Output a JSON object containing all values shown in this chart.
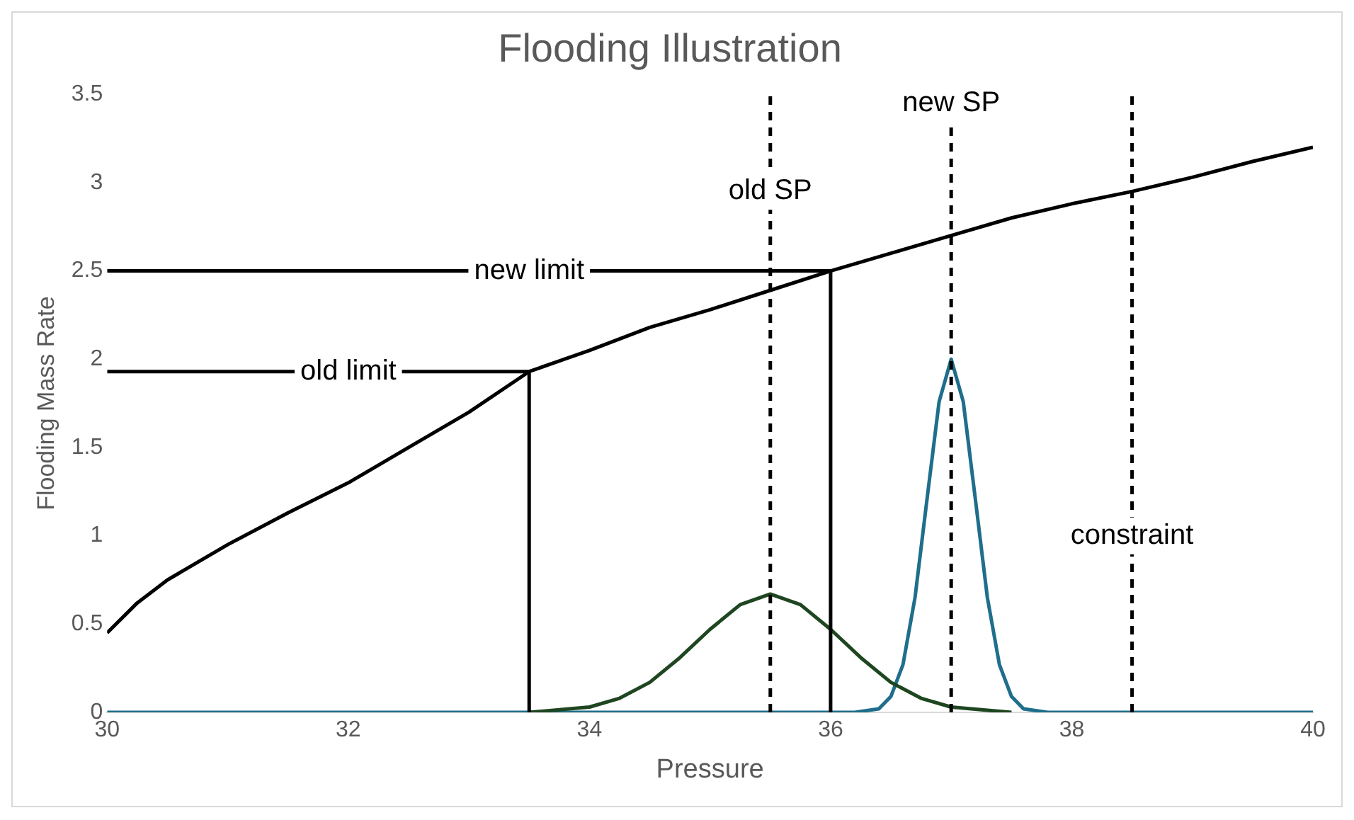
{
  "chart_data": {
    "type": "line",
    "title": "Flooding Illustration",
    "xlabel": "Pressure",
    "ylabel": "Flooding Mass Rate",
    "xlim": [
      30,
      40
    ],
    "xticks": [
      30,
      32,
      34,
      36,
      38,
      40
    ],
    "ylim": [
      0,
      3.5
    ],
    "yticks": [
      0,
      0.5,
      1,
      1.5,
      2,
      2.5,
      3,
      3.5
    ],
    "grid": false,
    "legend": false,
    "marker": "none",
    "series": [
      {
        "color": "#000000",
        "x": [
          30,
          30.25,
          30.5,
          31,
          31.5,
          32,
          32.5,
          33,
          33.5,
          34,
          34.5,
          35,
          35.5,
          36,
          36.5,
          37,
          37.5,
          38,
          38.5,
          39,
          39.5,
          40
        ],
        "values": [
          0.45,
          0.62,
          0.75,
          0.95,
          1.13,
          1.3,
          1.5,
          1.7,
          1.93,
          2.05,
          2.18,
          2.28,
          2.39,
          2.5,
          2.6,
          2.7,
          2.8,
          2.88,
          2.95,
          3.03,
          3.12,
          3.2
        ]
      },
      {
        "color": "#000000",
        "x": [
          30,
          33.5,
          33.5
        ],
        "values": [
          1.93,
          1.93,
          0
        ]
      },
      {
        "color": "#000000",
        "x": [
          30,
          36,
          36
        ],
        "values": [
          2.5,
          2.5,
          0
        ]
      },
      {
        "color": "#1e4620",
        "x": [
          33.5,
          34,
          34.25,
          34.5,
          34.75,
          35,
          35.25,
          35.5,
          35.75,
          36,
          36.25,
          36.5,
          36.75,
          37,
          37.5
        ],
        "values": [
          0,
          0.03,
          0.08,
          0.17,
          0.31,
          0.47,
          0.61,
          0.67,
          0.61,
          0.47,
          0.31,
          0.17,
          0.08,
          0.03,
          0
        ]
      },
      {
        "color": "#1f6e8c",
        "x": [
          30,
          36.2,
          36.4,
          36.5,
          36.6,
          36.7,
          36.8,
          36.9,
          37,
          37.1,
          37.2,
          37.3,
          37.4,
          37.5,
          37.6,
          37.8,
          40
        ],
        "values": [
          0,
          0,
          0.02,
          0.09,
          0.27,
          0.65,
          1.21,
          1.76,
          2.0,
          1.76,
          1.21,
          0.65,
          0.27,
          0.09,
          0.02,
          0,
          0
        ]
      }
    ],
    "ref_lines": [
      {
        "axis": "x",
        "value": 35.5,
        "color": "#000000",
        "line_style": "dashed"
      },
      {
        "axis": "x",
        "value": 37,
        "color": "#000000",
        "line_style": "dashed"
      },
      {
        "axis": "x",
        "value": 38.5,
        "color": "#000000",
        "line_style": "dashed"
      }
    ],
    "annotations": [
      {
        "text": "old limit",
        "x": 32,
        "y": 1.93
      },
      {
        "text": "new limit",
        "x": 33.5,
        "y": 2.5
      },
      {
        "text": "old SP",
        "x": 35.5,
        "y": 2.95
      },
      {
        "text": "new SP",
        "x": 37,
        "y": 3.45
      },
      {
        "text": "constraint",
        "x": 38.5,
        "y": 1.0
      }
    ]
  }
}
